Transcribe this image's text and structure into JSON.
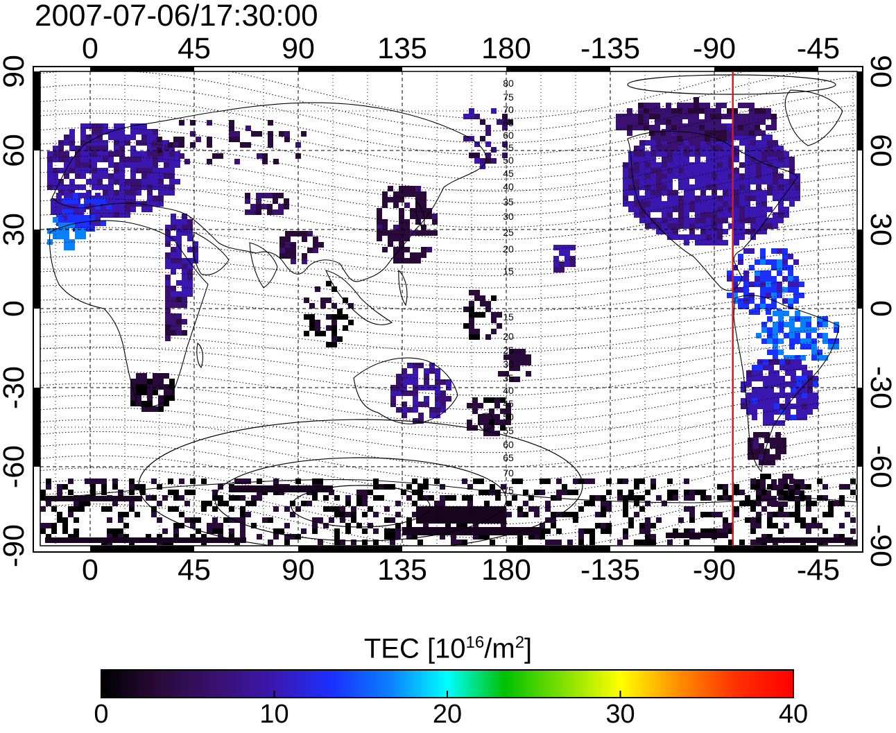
{
  "timestamp": "2007-07-06/17:30:00",
  "map": {
    "x_ticks": [
      "0",
      "45",
      "90",
      "135",
      "180",
      "-135",
      "-90",
      "-45"
    ],
    "y_ticks": [
      "90",
      "60",
      "30",
      "0",
      "-30",
      "-60",
      "-90"
    ],
    "contour_labels_north": [
      "80",
      "75",
      "70",
      "65",
      "60",
      "55",
      "50",
      "45",
      "40",
      "35",
      "30",
      "25",
      "20",
      "15"
    ],
    "contour_labels_south": [
      "15",
      "20",
      "25",
      "30",
      "35",
      "40",
      "45",
      "50",
      "55",
      "60",
      "65",
      "70",
      "75"
    ],
    "terminator_longitude": -82,
    "terminator_color": "#e0161a"
  },
  "colorbar": {
    "title_prefix": "TEC  [10",
    "title_exp1": "16",
    "title_mid": "/m",
    "title_exp2": "2",
    "title_suffix": "]",
    "ticks": [
      "0",
      "10",
      "20",
      "30",
      "40"
    ],
    "range": [
      0,
      40
    ],
    "colors": [
      "#000000",
      "#2a0a3a",
      "#3a1070",
      "#3a18b0",
      "#1a30ff",
      "#0a80ff",
      "#00ffff",
      "#00c000",
      "#7fe000",
      "#ffff00",
      "#ff9000",
      "#ff3000",
      "#ff0000"
    ]
  }
}
